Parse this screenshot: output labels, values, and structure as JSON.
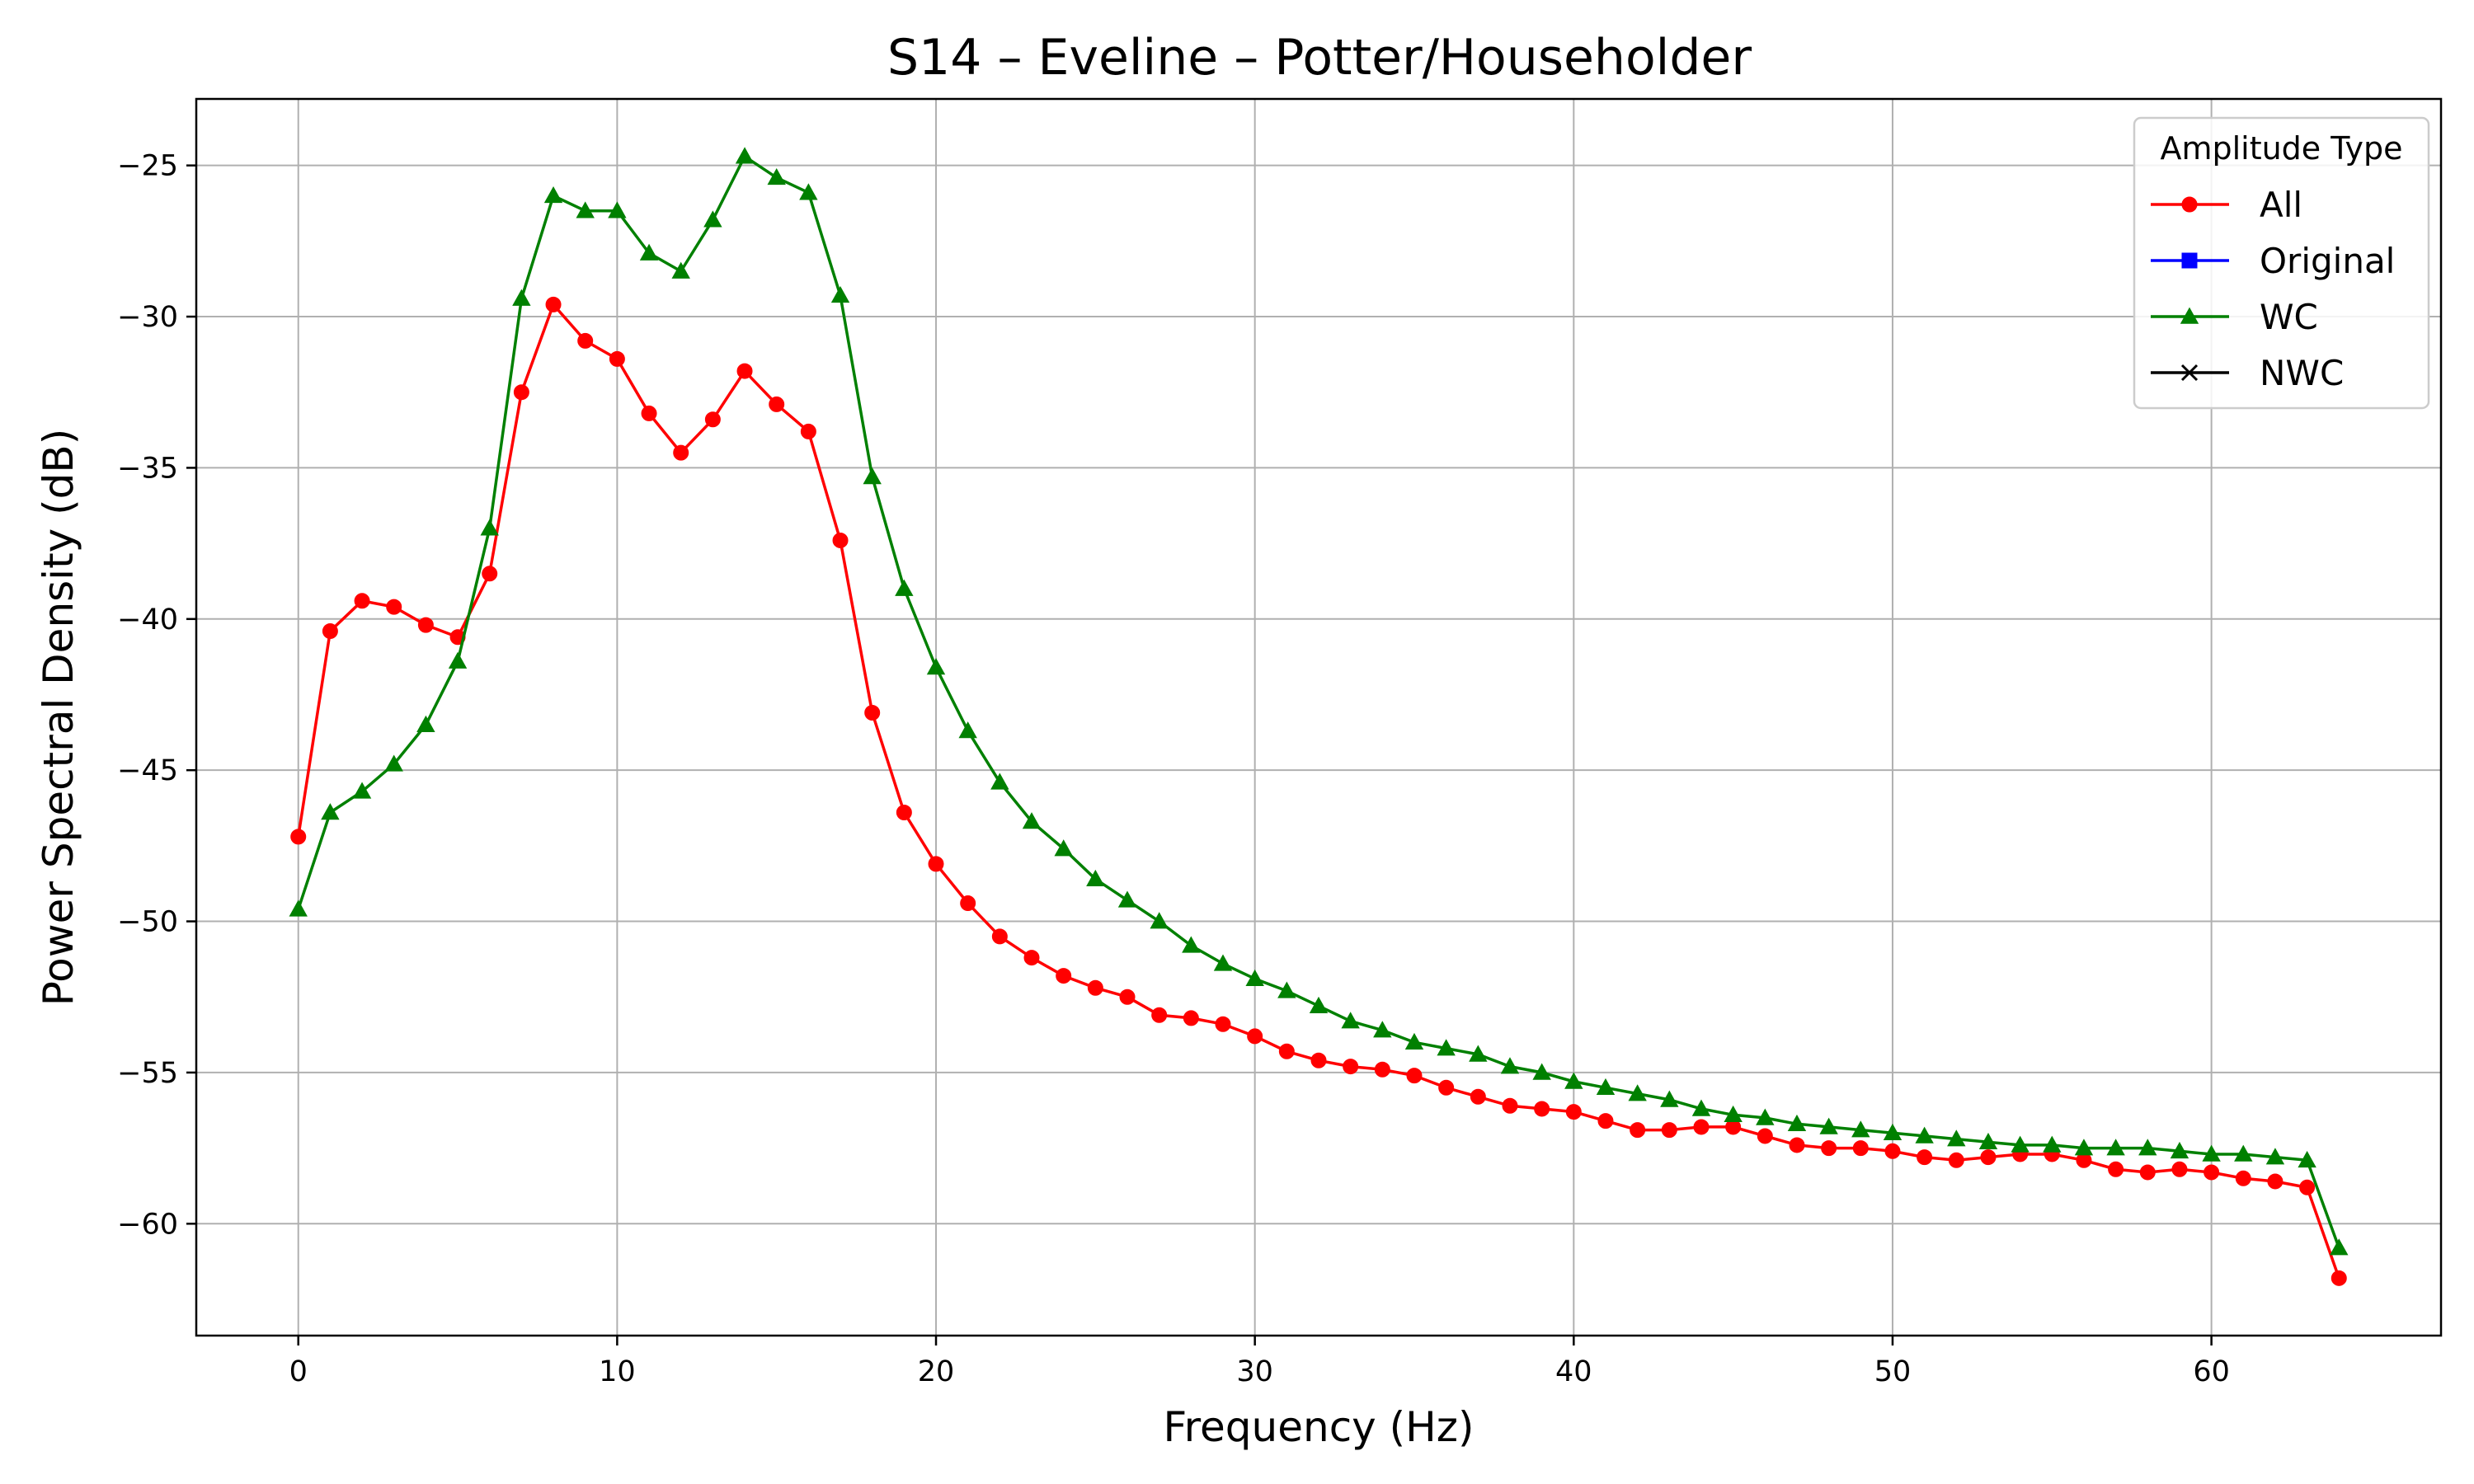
{
  "chart_data": {
    "type": "line",
    "title": "S14 – Eveline – Potter/Householder",
    "xlabel": "Frequency (Hz)",
    "ylabel": "Power Spectral Density (dB)",
    "xlim": [
      -3.2,
      67.2
    ],
    "ylim": [
      -63.7,
      -22.8
    ],
    "xticks": [
      0,
      10,
      20,
      30,
      40,
      50,
      60
    ],
    "yticks": [
      -60,
      -55,
      -50,
      -45,
      -40,
      -35,
      -30,
      -25
    ],
    "xtick_labels": [
      "0",
      "10",
      "20",
      "30",
      "40",
      "50",
      "60"
    ],
    "ytick_labels": [
      "−60",
      "−55",
      "−50",
      "−45",
      "−40",
      "−35",
      "−30",
      "−25"
    ],
    "grid": true,
    "legend": {
      "title": "Amplitude Type",
      "position": "top-right",
      "entries": [
        {
          "label": "All",
          "color": "#ff0000",
          "marker": "circle"
        },
        {
          "label": "Original",
          "color": "#0000ff",
          "marker": "square"
        },
        {
          "label": "WC",
          "color": "#008000",
          "marker": "triangle"
        },
        {
          "label": "NWC",
          "color": "#000000",
          "marker": "x"
        }
      ]
    },
    "x": [
      0,
      1,
      2,
      3,
      4,
      5,
      6,
      7,
      8,
      9,
      10,
      11,
      12,
      13,
      14,
      15,
      16,
      17,
      18,
      19,
      20,
      21,
      22,
      23,
      24,
      25,
      26,
      27,
      28,
      29,
      30,
      31,
      32,
      33,
      34,
      35,
      36,
      37,
      38,
      39,
      40,
      41,
      42,
      43,
      44,
      45,
      46,
      47,
      48,
      49,
      50,
      51,
      52,
      53,
      54,
      55,
      56,
      57,
      58,
      59,
      60,
      61,
      62,
      63,
      64
    ],
    "series": [
      {
        "name": "All",
        "color": "#ff0000",
        "marker": "circle",
        "values": [
          -47.2,
          -40.4,
          -39.4,
          -39.6,
          -40.2,
          -40.6,
          -38.5,
          -32.5,
          -29.6,
          -30.8,
          -31.4,
          -33.2,
          -34.5,
          -33.4,
          -31.8,
          -32.9,
          -33.8,
          -37.4,
          -43.1,
          -46.4,
          -48.1,
          -49.4,
          -50.5,
          -51.2,
          -51.8,
          -52.2,
          -52.5,
          -53.1,
          -53.2,
          -53.4,
          -53.8,
          -54.3,
          -54.6,
          -54.8,
          -54.9,
          -55.1,
          -55.5,
          -55.8,
          -56.1,
          -56.2,
          -56.3,
          -56.6,
          -56.9,
          -56.9,
          -56.8,
          -56.8,
          -57.1,
          -57.4,
          -57.5,
          -57.5,
          -57.6,
          -57.8,
          -57.9,
          -57.8,
          -57.7,
          -57.7,
          -57.9,
          -58.2,
          -58.3,
          -58.2,
          -58.3,
          -58.5,
          -58.6,
          -58.8,
          -61.8
        ]
      },
      {
        "name": "WC",
        "color": "#008000",
        "marker": "triangle",
        "values": [
          -49.6,
          -46.4,
          -45.7,
          -44.8,
          -43.5,
          -41.4,
          -37.0,
          -29.4,
          -26.0,
          -26.5,
          -26.5,
          -27.9,
          -28.5,
          -26.8,
          -24.7,
          -25.4,
          -25.9,
          -29.3,
          -35.3,
          -39.0,
          -41.6,
          -43.7,
          -45.4,
          -46.7,
          -47.6,
          -48.6,
          -49.3,
          -50.0,
          -50.8,
          -51.4,
          -51.9,
          -52.3,
          -52.8,
          -53.3,
          -53.6,
          -54.0,
          -54.2,
          -54.4,
          -54.8,
          -55.0,
          -55.3,
          -55.5,
          -55.7,
          -55.9,
          -56.2,
          -56.4,
          -56.5,
          -56.7,
          -56.8,
          -56.9,
          -57.0,
          -57.1,
          -57.2,
          -57.3,
          -57.4,
          -57.4,
          -57.5,
          -57.5,
          -57.5,
          -57.6,
          -57.7,
          -57.7,
          -57.8,
          -57.9,
          -60.8
        ]
      }
    ]
  }
}
